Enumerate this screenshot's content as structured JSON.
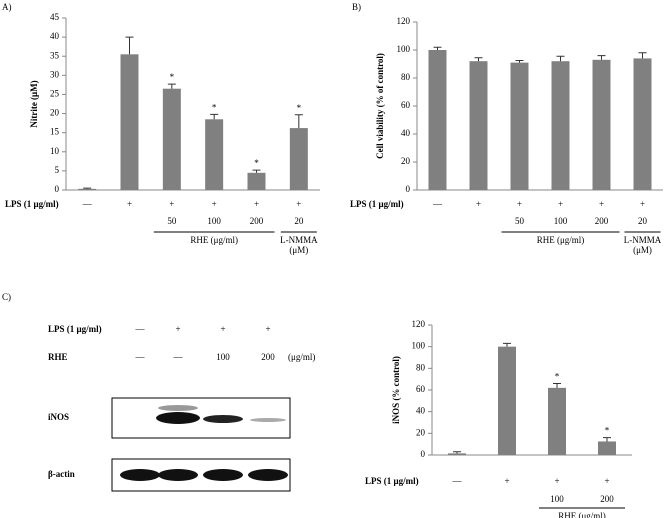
{
  "panel_labels": [
    "A)",
    "B)",
    "C)"
  ],
  "chart_data": [
    {
      "type": "bar",
      "y_label": "Nitrite (μM)",
      "x_label": "LPS (1 μg/ml)",
      "categories": [
        "—",
        "+",
        "+",
        "+",
        "+",
        "+"
      ],
      "doses": [
        null,
        null,
        "50",
        "100",
        "200",
        "20"
      ],
      "groups": [
        {
          "label": [
            "RHE  (μg/ml)"
          ],
          "span": [
            2,
            4
          ]
        },
        {
          "label": [
            "L-NMMA",
            "(μM)"
          ],
          "span": [
            5,
            5
          ]
        }
      ],
      "values": [
        0.3,
        35.5,
        26.5,
        18.5,
        4.5,
        16.2
      ],
      "errors": [
        0.2,
        4.5,
        1.2,
        1.3,
        0.7,
        3.5
      ],
      "significance": [
        null,
        null,
        "*",
        "*",
        "*",
        "*"
      ],
      "color": "#808080",
      "ylim": [
        0,
        45
      ],
      "yticks": [
        0,
        5,
        10,
        15,
        20,
        25,
        30,
        35,
        40,
        45
      ]
    },
    {
      "type": "bar",
      "y_label": "Cell viability (% of control)",
      "x_label": "LPS (1 μg/ml)",
      "categories": [
        "—",
        "+",
        "+",
        "+",
        "+",
        "+"
      ],
      "doses": [
        null,
        null,
        "50",
        "100",
        "200",
        "20"
      ],
      "groups": [
        {
          "label": [
            "RHE  (μg/ml)"
          ],
          "span": [
            2,
            4
          ]
        },
        {
          "label": [
            "L-NMMA",
            "(μM)"
          ],
          "span": [
            5,
            5
          ]
        }
      ],
      "values": [
        100,
        92,
        91,
        92,
        93,
        94
      ],
      "errors": [
        2,
        2.5,
        1.5,
        3.5,
        3,
        4
      ],
      "significance": [
        null,
        null,
        null,
        null,
        null,
        null
      ],
      "color": "#808080",
      "ylim": [
        0,
        120
      ],
      "yticks": [
        0,
        20,
        40,
        60,
        80,
        100,
        120
      ]
    },
    {
      "type": "bar",
      "y_label": "iNOS  (% control)",
      "x_label": "LPS (1 μg/ml)",
      "categories": [
        "—",
        "+",
        "+",
        "+"
      ],
      "doses": [
        null,
        null,
        "100",
        "200"
      ],
      "groups": [
        {
          "label": [
            "RHE  (μg/ml)"
          ],
          "span": [
            2,
            3
          ]
        }
      ],
      "values": [
        1.5,
        100,
        62,
        12.5
      ],
      "errors": [
        1.5,
        3,
        4,
        3.5
      ],
      "significance": [
        null,
        null,
        "*",
        "*"
      ],
      "color": "#808080",
      "ylim": [
        0,
        120
      ],
      "yticks": [
        0,
        20,
        40,
        60,
        80,
        100,
        120
      ]
    }
  ],
  "blot": {
    "rows": [
      {
        "label": "LPS (1 μg/ml)",
        "lanes": [
          "—",
          "+",
          "+",
          "+"
        ],
        "unit": null
      },
      {
        "label": "RHE",
        "lanes": [
          "—",
          "—",
          "100",
          "200"
        ],
        "unit": "(μg/ml)"
      }
    ],
    "bands": [
      "iNOS",
      "β-actin"
    ]
  }
}
